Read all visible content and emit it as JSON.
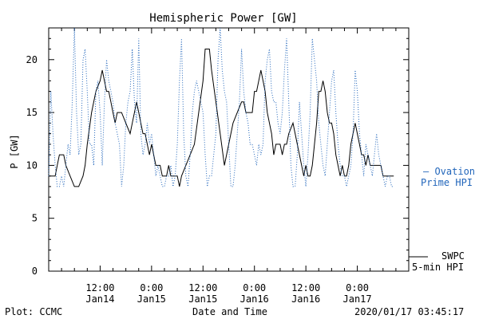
{
  "chart_data": {
    "type": "line",
    "title": "Hemispheric Power [GW]",
    "ylabel": "P [GW]",
    "xlabel": "Date and Time",
    "ylim": [
      0,
      23
    ],
    "xlim": [
      0,
      84
    ],
    "yticks": [
      0,
      5,
      10,
      15,
      20
    ],
    "xticks": [
      {
        "x": 12,
        "line1": "12:00",
        "line2": "Jan14"
      },
      {
        "x": 24,
        "line1": "0:00",
        "line2": "Jan15"
      },
      {
        "x": 36,
        "line1": "12:00",
        "line2": "Jan15"
      },
      {
        "x": 48,
        "line1": "0:00",
        "line2": "Jan16"
      },
      {
        "x": 60,
        "line1": "12:00",
        "line2": "Jan16"
      },
      {
        "x": 72,
        "line1": "0:00",
        "line2": "Jan17"
      }
    ],
    "series": [
      {
        "name": "SWPC 5-min HPI",
        "color": "#000000",
        "style": "solid",
        "points": [
          [
            0,
            9
          ],
          [
            1.5,
            9
          ],
          [
            2,
            10
          ],
          [
            2.5,
            11
          ],
          [
            3.5,
            11
          ],
          [
            4,
            10
          ],
          [
            5,
            9
          ],
          [
            6,
            8
          ],
          [
            7,
            8
          ],
          [
            8,
            9
          ],
          [
            8.5,
            10
          ],
          [
            9,
            12
          ],
          [
            10,
            15
          ],
          [
            11,
            17
          ],
          [
            12,
            18
          ],
          [
            12.5,
            19
          ],
          [
            13,
            18
          ],
          [
            13.5,
            17
          ],
          [
            14,
            17
          ],
          [
            14.5,
            16
          ],
          [
            15,
            15
          ],
          [
            15.5,
            14
          ],
          [
            16,
            15
          ],
          [
            17,
            15
          ],
          [
            18,
            14
          ],
          [
            19,
            13
          ],
          [
            19.5,
            14
          ],
          [
            20,
            15
          ],
          [
            20.5,
            16
          ],
          [
            21,
            15
          ],
          [
            21.5,
            14
          ],
          [
            22,
            13
          ],
          [
            22.5,
            13
          ],
          [
            23,
            12
          ],
          [
            23.5,
            11
          ],
          [
            24,
            12
          ],
          [
            24.5,
            11
          ],
          [
            25,
            10
          ],
          [
            26,
            10
          ],
          [
            26.5,
            9
          ],
          [
            27.5,
            9
          ],
          [
            28,
            10
          ],
          [
            28.5,
            9
          ],
          [
            29,
            9
          ],
          [
            30,
            9
          ],
          [
            30.5,
            8
          ],
          [
            31,
            9
          ],
          [
            32,
            10
          ],
          [
            33,
            11
          ],
          [
            34,
            12
          ],
          [
            35,
            15
          ],
          [
            36,
            18
          ],
          [
            36.5,
            21
          ],
          [
            37.5,
            21
          ],
          [
            38,
            19
          ],
          [
            39,
            16
          ],
          [
            40,
            13
          ],
          [
            41,
            10
          ],
          [
            41.5,
            11
          ],
          [
            42,
            12
          ],
          [
            43,
            14
          ],
          [
            44,
            15
          ],
          [
            45,
            16
          ],
          [
            45.5,
            16
          ],
          [
            46,
            15
          ],
          [
            47,
            15
          ],
          [
            47.5,
            15
          ],
          [
            48,
            17
          ],
          [
            48.5,
            17
          ],
          [
            49,
            18
          ],
          [
            49.5,
            19
          ],
          [
            50,
            18
          ],
          [
            50.5,
            17
          ],
          [
            51,
            15
          ],
          [
            52,
            13
          ],
          [
            52.5,
            11
          ],
          [
            53,
            12
          ],
          [
            54,
            12
          ],
          [
            54.5,
            11
          ],
          [
            55,
            12
          ],
          [
            55.5,
            12
          ],
          [
            56,
            13
          ],
          [
            57,
            14
          ],
          [
            57.5,
            13
          ],
          [
            58,
            12
          ],
          [
            58.5,
            11
          ],
          [
            59,
            10
          ],
          [
            59.5,
            9
          ],
          [
            60,
            10
          ],
          [
            60.5,
            9
          ],
          [
            61,
            9
          ],
          [
            61.5,
            10
          ],
          [
            62,
            12
          ],
          [
            62.5,
            14
          ],
          [
            63,
            17
          ],
          [
            63.5,
            17
          ],
          [
            64,
            18
          ],
          [
            64.5,
            17
          ],
          [
            65,
            15
          ],
          [
            65.5,
            14
          ],
          [
            66,
            14
          ],
          [
            66.5,
            13
          ],
          [
            67,
            11
          ],
          [
            67.5,
            10
          ],
          [
            68,
            9
          ],
          [
            68.5,
            10
          ],
          [
            69,
            9
          ],
          [
            69.5,
            9
          ],
          [
            70,
            10
          ],
          [
            70.5,
            12
          ],
          [
            71,
            13
          ],
          [
            71.5,
            14
          ],
          [
            72,
            13
          ],
          [
            72.5,
            12
          ],
          [
            73,
            11
          ],
          [
            73.5,
            11
          ],
          [
            74,
            10
          ],
          [
            74.5,
            11
          ],
          [
            75,
            10
          ],
          [
            76,
            10
          ],
          [
            77,
            10
          ],
          [
            77.5,
            10
          ],
          [
            78,
            9
          ],
          [
            79,
            9
          ],
          [
            80,
            9
          ],
          [
            80.5,
            9
          ]
        ]
      },
      {
        "name": "Ovation Prime HPI",
        "color": "#2266bb",
        "style": "dotted",
        "points": [
          [
            0,
            9
          ],
          [
            0.5,
            17
          ],
          [
            1,
            13
          ],
          [
            1.5,
            10
          ],
          [
            2,
            8
          ],
          [
            2.5,
            8
          ],
          [
            3,
            9
          ],
          [
            3.5,
            8
          ],
          [
            4,
            10
          ],
          [
            4.5,
            12
          ],
          [
            5,
            11
          ],
          [
            5.5,
            16
          ],
          [
            6,
            23
          ],
          [
            6.5,
            15
          ],
          [
            7,
            11
          ],
          [
            7.5,
            12
          ],
          [
            8,
            20
          ],
          [
            8.5,
            21
          ],
          [
            9,
            17
          ],
          [
            9.5,
            12
          ],
          [
            10,
            12
          ],
          [
            10.5,
            10
          ],
          [
            11,
            17
          ],
          [
            11.5,
            18
          ],
          [
            12,
            15
          ],
          [
            12.5,
            10
          ],
          [
            13,
            16
          ],
          [
            13.5,
            20
          ],
          [
            14,
            18
          ],
          [
            14.5,
            17
          ],
          [
            15,
            16
          ],
          [
            15.5,
            14
          ],
          [
            16,
            13
          ],
          [
            16.5,
            12
          ],
          [
            17,
            8
          ],
          [
            17.5,
            10
          ],
          [
            18,
            14
          ],
          [
            18.5,
            16
          ],
          [
            19,
            17
          ],
          [
            19.5,
            21
          ],
          [
            20,
            16
          ],
          [
            20.5,
            14
          ],
          [
            21,
            22
          ],
          [
            21.5,
            13
          ],
          [
            22,
            11
          ],
          [
            22.5,
            12
          ],
          [
            23,
            14
          ],
          [
            23.5,
            12
          ],
          [
            24,
            13
          ],
          [
            24.5,
            11
          ],
          [
            25,
            9
          ],
          [
            25.5,
            10
          ],
          [
            26,
            9
          ],
          [
            26.5,
            8
          ],
          [
            27,
            8
          ],
          [
            27.5,
            9
          ],
          [
            28,
            9
          ],
          [
            28.5,
            10
          ],
          [
            29,
            8
          ],
          [
            29.5,
            9
          ],
          [
            30,
            12
          ],
          [
            30.5,
            18
          ],
          [
            31,
            22
          ],
          [
            31.5,
            13
          ],
          [
            32,
            9
          ],
          [
            32.5,
            8
          ],
          [
            33,
            11
          ],
          [
            33.5,
            15
          ],
          [
            34,
            17
          ],
          [
            34.5,
            18
          ],
          [
            35,
            17
          ],
          [
            35.5,
            16
          ],
          [
            36,
            15
          ],
          [
            36.5,
            11
          ],
          [
            37,
            8
          ],
          [
            37.5,
            9
          ],
          [
            38,
            9
          ],
          [
            38.5,
            11
          ],
          [
            39,
            13
          ],
          [
            39.5,
            20
          ],
          [
            40,
            23
          ],
          [
            40.5,
            19
          ],
          [
            41,
            17
          ],
          [
            41.5,
            16
          ],
          [
            42,
            12
          ],
          [
            42.5,
            8
          ],
          [
            43,
            8
          ],
          [
            43.5,
            10
          ],
          [
            44,
            13
          ],
          [
            44.5,
            16
          ],
          [
            45,
            21
          ],
          [
            45.5,
            17
          ],
          [
            46,
            15
          ],
          [
            46.5,
            14
          ],
          [
            47,
            12
          ],
          [
            47.5,
            12
          ],
          [
            48,
            11
          ],
          [
            48.5,
            10
          ],
          [
            49,
            12
          ],
          [
            49.5,
            11
          ],
          [
            50,
            12
          ],
          [
            50.5,
            18
          ],
          [
            51,
            20
          ],
          [
            51.5,
            21
          ],
          [
            52,
            17
          ],
          [
            52.5,
            16
          ],
          [
            53,
            16
          ],
          [
            53.5,
            14
          ],
          [
            54,
            13
          ],
          [
            54.5,
            15
          ],
          [
            55,
            19
          ],
          [
            55.5,
            22
          ],
          [
            56,
            16
          ],
          [
            56.5,
            10
          ],
          [
            57,
            8
          ],
          [
            57.5,
            8
          ],
          [
            58,
            11
          ],
          [
            58.5,
            16
          ],
          [
            59,
            13
          ],
          [
            59.5,
            10
          ],
          [
            60,
            8
          ],
          [
            60.5,
            11
          ],
          [
            61,
            15
          ],
          [
            61.5,
            22
          ],
          [
            62,
            20
          ],
          [
            62.5,
            18
          ],
          [
            63,
            14
          ],
          [
            63.5,
            12
          ],
          [
            64,
            10
          ],
          [
            64.5,
            9
          ],
          [
            65,
            12
          ],
          [
            65.5,
            15
          ],
          [
            66,
            18
          ],
          [
            66.5,
            19
          ],
          [
            67,
            15
          ],
          [
            67.5,
            12
          ],
          [
            68,
            10
          ],
          [
            68.5,
            9
          ],
          [
            69,
            9
          ],
          [
            69.5,
            8
          ],
          [
            70,
            9
          ],
          [
            70.5,
            10
          ],
          [
            71,
            13
          ],
          [
            71.5,
            19
          ],
          [
            72,
            17
          ],
          [
            72.5,
            13
          ],
          [
            73,
            11
          ],
          [
            73.5,
            9
          ],
          [
            74,
            12
          ],
          [
            74.5,
            11
          ],
          [
            75,
            10
          ],
          [
            75.5,
            9
          ],
          [
            76,
            11
          ],
          [
            76.5,
            13
          ],
          [
            77,
            11
          ],
          [
            77.5,
            10
          ],
          [
            78,
            9
          ],
          [
            78.5,
            8
          ],
          [
            79,
            9
          ],
          [
            79.5,
            9
          ],
          [
            80,
            8
          ],
          [
            80.5,
            8
          ]
        ]
      }
    ],
    "legend": {
      "ovation_line1": "— Ovation",
      "ovation_line2": "Prime HPI",
      "swpc_line1": "SWPC",
      "swpc_line2": "5-min HPI"
    },
    "grid": false
  },
  "footer": {
    "plot_credit": "Plot: CCMC",
    "timestamp": "2020/01/17 03:45:17"
  },
  "colors": {
    "ovation": "#2266bb",
    "swpc": "#000000",
    "axes": "#000000",
    "background": "#ffffff"
  }
}
